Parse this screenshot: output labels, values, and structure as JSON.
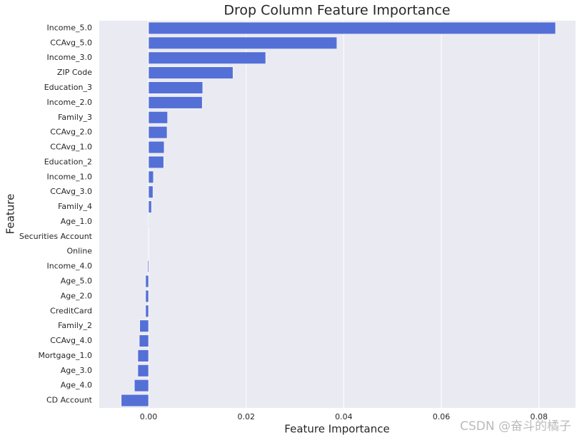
{
  "chart_data": {
    "type": "barh",
    "title": "Drop Column Feature Importance",
    "x_label": "Feature Importance",
    "y_label": "Feature",
    "categories": [
      "Income_5.0",
      "CCAvg_5.0",
      "Income_3.0",
      "ZIP Code",
      "Education_3",
      "Income_2.0",
      "Family_3",
      "CCAvg_2.0",
      "CCAvg_1.0",
      "Education_2",
      "Income_1.0",
      "CCAvg_3.0",
      "Family_4",
      "Age_1.0",
      "Securities Account",
      "Online",
      "Income_4.0",
      "Age_5.0",
      "Age_2.0",
      "CreditCard",
      "Family_2",
      "CCAvg_4.0",
      "Mortgage_1.0",
      "Age_3.0",
      "Age_4.0",
      "CD Account"
    ],
    "values": [
      0.0834,
      0.0386,
      0.024,
      0.0173,
      0.0111,
      0.011,
      0.0039,
      0.0038,
      0.0032,
      0.0031,
      0.001,
      0.0009,
      0.0006,
      0.0001,
      0,
      0,
      -0.0002,
      -0.0006,
      -0.0006,
      -0.0006,
      -0.0018,
      -0.0019,
      -0.0022,
      -0.0022,
      -0.0029,
      -0.0056
    ],
    "color": "#5470d6",
    "xlim": [
      -0.0101,
      0.0875
    ],
    "xticks": [
      {
        "value": 0,
        "label": "0.00"
      },
      0.02,
      0.04,
      0.06,
      0.08
    ],
    "grid": true,
    "watermark": "CSDN @奋斗的橘子"
  }
}
